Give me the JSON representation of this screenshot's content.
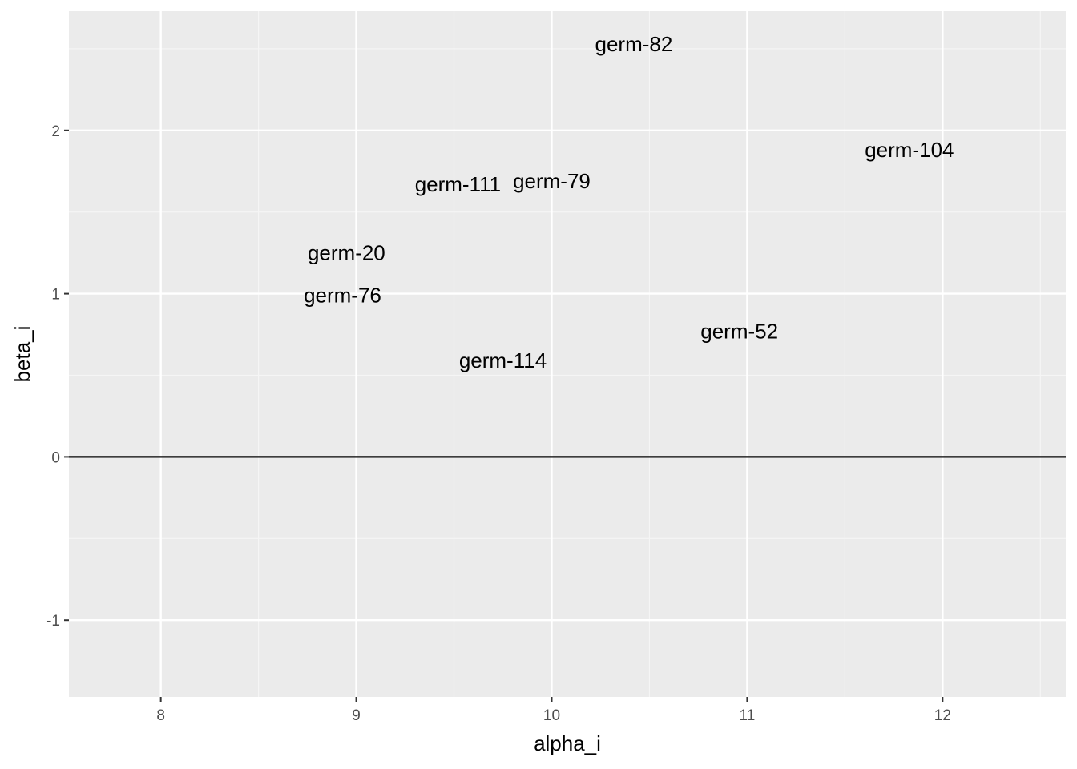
{
  "chart_data": {
    "type": "scatter",
    "title": "",
    "xlabel": "alpha_i",
    "ylabel": "beta_i",
    "xlim": [
      7.53,
      12.63
    ],
    "ylim": [
      -1.47,
      2.73
    ],
    "x_ticks": [
      8,
      9,
      10,
      11,
      12
    ],
    "y_ticks": [
      -1,
      0,
      1,
      2
    ],
    "x_tick_labels": [
      "8",
      "9",
      "10",
      "11",
      "12"
    ],
    "y_tick_labels": [
      "-1",
      "0",
      "1",
      "2"
    ],
    "grid": true,
    "reference_line": {
      "axis": "y",
      "value": 0,
      "color": "#000000"
    },
    "points": [
      {
        "label": "germ-82",
        "x": 10.42,
        "y": 2.53
      },
      {
        "label": "germ-104",
        "x": 11.83,
        "y": 1.88
      },
      {
        "label": "germ-111",
        "x": 9.52,
        "y": 1.67
      },
      {
        "label": "germ-79",
        "x": 10.0,
        "y": 1.69
      },
      {
        "label": "germ-20",
        "x": 8.95,
        "y": 1.25
      },
      {
        "label": "germ-76",
        "x": 8.93,
        "y": 0.99
      },
      {
        "label": "germ-52",
        "x": 10.96,
        "y": 0.77
      },
      {
        "label": "germ-114",
        "x": 9.75,
        "y": 0.59
      }
    ],
    "colors": {
      "panel_background": "#ebebeb",
      "grid_major": "#ffffff",
      "grid_minor": "#f5f5f5",
      "text": "#000000",
      "tick_text": "#4d4d4d"
    }
  }
}
